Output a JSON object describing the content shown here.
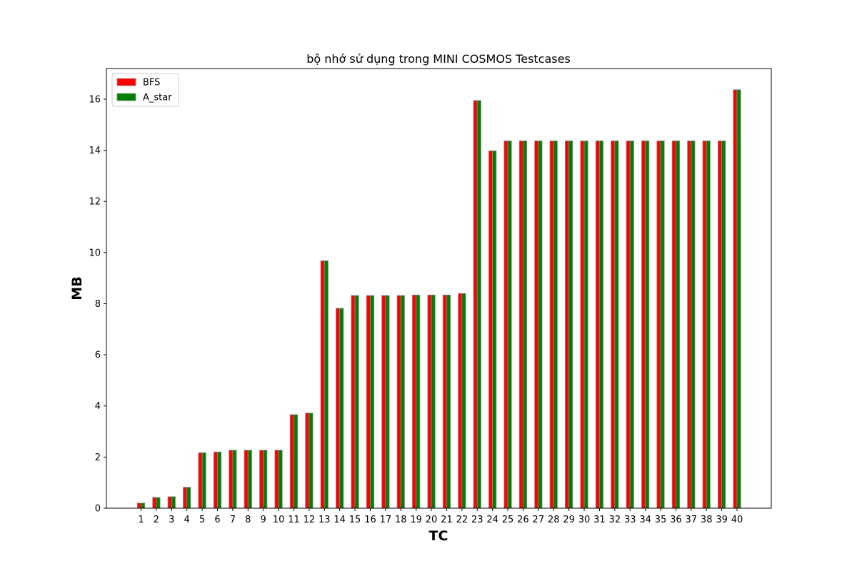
{
  "chart_data": {
    "type": "bar",
    "title": "bộ nhớ sử dụng trong MINI COSMOS Testcases",
    "xlabel": "TC",
    "ylabel": "MB",
    "ylim": [
      0,
      17.2
    ],
    "yticks": [
      0,
      2,
      4,
      6,
      8,
      10,
      12,
      14,
      16
    ],
    "grid": false,
    "legend_position": "top-left",
    "categories": [
      "1",
      "2",
      "3",
      "4",
      "5",
      "6",
      "7",
      "8",
      "9",
      "10",
      "11",
      "12",
      "13",
      "14",
      "15",
      "16",
      "17",
      "18",
      "19",
      "20",
      "21",
      "22",
      "23",
      "24",
      "25",
      "26",
      "27",
      "28",
      "29",
      "30",
      "31",
      "32",
      "33",
      "34",
      "35",
      "36",
      "37",
      "38",
      "39",
      "40"
    ],
    "series": [
      {
        "name": "BFS",
        "color": "#ff0000",
        "values": [
          0.2,
          0.42,
          0.45,
          0.82,
          2.17,
          2.2,
          2.27,
          2.27,
          2.27,
          2.27,
          3.66,
          3.72,
          9.68,
          7.82,
          8.32,
          8.32,
          8.32,
          8.32,
          8.34,
          8.34,
          8.34,
          8.4,
          15.95,
          13.98,
          14.37,
          14.37,
          14.37,
          14.37,
          14.37,
          14.37,
          14.37,
          14.37,
          14.37,
          14.37,
          14.37,
          14.37,
          14.37,
          14.37,
          14.37,
          16.37
        ]
      },
      {
        "name": "A_star",
        "color": "#008000",
        "values": [
          0.2,
          0.42,
          0.45,
          0.82,
          2.17,
          2.2,
          2.27,
          2.27,
          2.27,
          2.27,
          3.66,
          3.72,
          9.68,
          7.82,
          8.32,
          8.32,
          8.32,
          8.32,
          8.34,
          8.34,
          8.34,
          8.4,
          15.95,
          13.98,
          14.37,
          14.37,
          14.37,
          14.37,
          14.37,
          14.37,
          14.37,
          14.37,
          14.37,
          14.37,
          14.37,
          14.37,
          14.37,
          14.37,
          14.37,
          16.37
        ]
      }
    ]
  }
}
